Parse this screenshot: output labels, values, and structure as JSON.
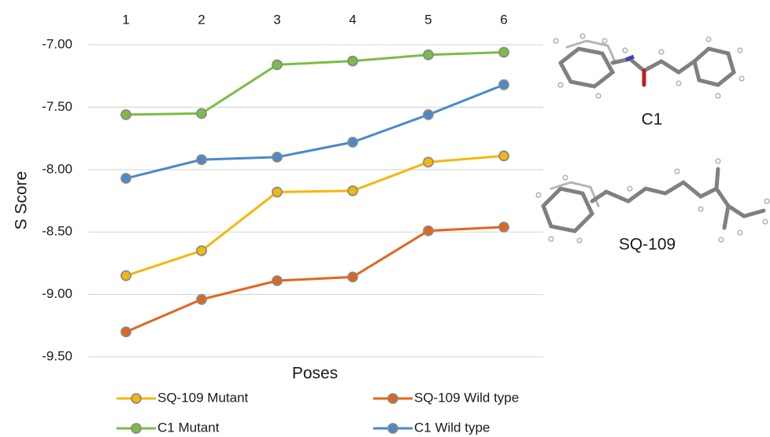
{
  "chart_data": {
    "type": "line",
    "y_label": "S Score",
    "x_label": "Poses",
    "categories": [
      "1",
      "2",
      "3",
      "4",
      "5",
      "6"
    ],
    "ylim": [
      -9.5,
      -7.0
    ],
    "yticks": [
      {
        "value": -7.0,
        "label": "-7.00"
      },
      {
        "value": -7.5,
        "label": "-7.50"
      },
      {
        "value": -8.0,
        "label": "-8.00"
      },
      {
        "value": -8.5,
        "label": "-8.50"
      },
      {
        "value": -9.0,
        "label": "-9.00"
      },
      {
        "value": -9.5,
        "label": "-9.50"
      }
    ],
    "grid": true,
    "legend": "bottom",
    "series": [
      {
        "name": "SQ-109 Mutant",
        "color": "#f5b70c",
        "values": [
          -8.85,
          -8.65,
          -8.18,
          -8.17,
          -7.94,
          -7.89
        ]
      },
      {
        "name": "SQ-109 Wild type",
        "color": "#e0661c",
        "values": [
          -9.3,
          -9.04,
          -8.89,
          -8.86,
          -8.49,
          -8.46
        ]
      },
      {
        "name": "C1 Mutant",
        "color": "#7bbd44",
        "values": [
          -7.56,
          -7.55,
          -7.16,
          -7.13,
          -7.08,
          -7.06
        ]
      },
      {
        "name": "C1 Wild type",
        "color": "#4a8ac9",
        "values": [
          -8.07,
          -7.92,
          -7.9,
          -7.78,
          -7.56,
          -7.32
        ]
      }
    ],
    "annotations": [
      "C1",
      "SQ-109"
    ]
  }
}
